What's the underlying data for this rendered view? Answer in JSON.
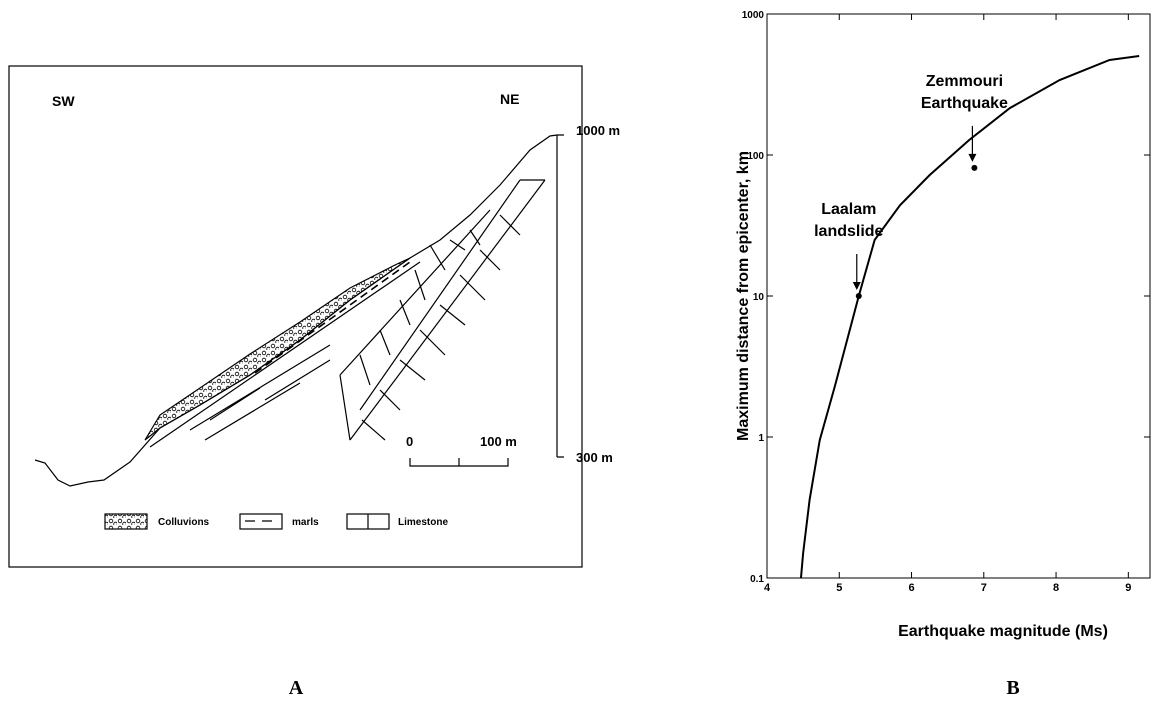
{
  "panel_a": {
    "sw": "SW",
    "ne": "NE",
    "elevation_top": "1000 m",
    "elevation_bottom": "300 m",
    "scale_zero": "0",
    "scale_length": "100 m",
    "legend": [
      "Colluvions",
      "marls",
      "Limestone"
    ],
    "caption": "A"
  },
  "chart_data": {
    "type": "line",
    "yscale": "log",
    "color": "#000000",
    "x_label": "Earthquake magnitude (Ms)",
    "y_label": "Maximum distance from epicenter, km",
    "x": [
      4.47,
      4.5,
      4.59,
      4.73,
      4.94,
      5.27,
      5.49,
      5.84,
      6.25,
      6.8,
      7.36,
      8.05,
      8.74,
      9.15
    ],
    "values": [
      0.1,
      0.15,
      0.36,
      0.95,
      2.3,
      10,
      25,
      44,
      72,
      128,
      215,
      340,
      472,
      504
    ],
    "points": [
      {
        "x": 5.27,
        "y": 10,
        "label": [
          "Laalam",
          "landslide"
        ]
      },
      {
        "x": 6.87,
        "y": 81,
        "label": [
          "Zemmouri",
          "Earthquake"
        ]
      }
    ],
    "xlim": [
      4,
      9.3
    ],
    "ylim": [
      0.1,
      1000
    ],
    "xticks": [
      4,
      5,
      6,
      7,
      8,
      9
    ],
    "yticks": [
      0.1,
      1,
      10,
      100,
      1000
    ],
    "caption": "B"
  }
}
